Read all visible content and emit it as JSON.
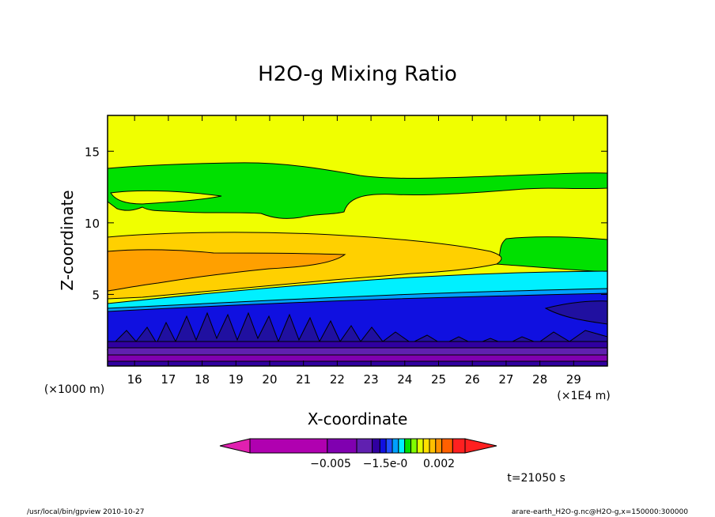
{
  "chart_data": {
    "type": "heatmap",
    "title": "H2O-g Mixing Ratio",
    "xlabel": "X-coordinate",
    "ylabel": "Z-coordinate",
    "x_unit": "(×1E4 m)",
    "y_unit": "(×1000 m)",
    "xlim": [
      15.2,
      30.0
    ],
    "ylim": [
      0,
      17.5
    ],
    "x_ticks": [
      16,
      17,
      18,
      19,
      20,
      21,
      22,
      23,
      24,
      25,
      26,
      27,
      28,
      29
    ],
    "y_ticks": [
      5,
      10,
      15
    ],
    "colorbar_labels": [
      "−0.005",
      "−1.5e-0",
      "0.002"
    ],
    "colorbar_colors": [
      "#e020b0",
      "#b000b0",
      "#8000b0",
      "#6020b0",
      "#3000a0",
      "#1010e0",
      "#2050ff",
      "#00a0ff",
      "#00f0ff",
      "#00e000",
      "#80ff00",
      "#e0ff00",
      "#ffe000",
      "#ffc000",
      "#ff9000",
      "#ff6000",
      "#ff2020"
    ],
    "annotation": "t=21050 s",
    "bands": [
      {
        "z_bottom": 0.0,
        "z_top": 0.5,
        "color": "#3000a0"
      },
      {
        "z_bottom": 0.5,
        "z_top": 1.0,
        "color": "#8000b0"
      },
      {
        "z_bottom": 1.0,
        "z_top": 1.5,
        "color": "#6020b0"
      },
      {
        "z_bottom": 1.5,
        "z_top": 2.1,
        "color": "#3000a0"
      },
      {
        "z_bottom": 2.1,
        "z_top": 4.6,
        "color": "#1010e0"
      },
      {
        "z_bottom": 4.6,
        "z_top": 5.9,
        "color": "#00f0ff"
      },
      {
        "z_bottom": 5.9,
        "z_top": 8.3,
        "color": "#ffc000"
      },
      {
        "z_bottom": 8.3,
        "z_top": 10.5,
        "color": "#ffe000"
      },
      {
        "z_bottom": 10.5,
        "z_top": 14.0,
        "color": "#00e000"
      },
      {
        "z_bottom": 14.0,
        "z_top": 17.5,
        "color": "#f0ff00"
      }
    ]
  },
  "footer": {
    "left": "/usr/local/bin/gpview  2010-10-27",
    "right": "arare-earth_H2O-g.nc@H2O-g,x=150000:300000"
  }
}
